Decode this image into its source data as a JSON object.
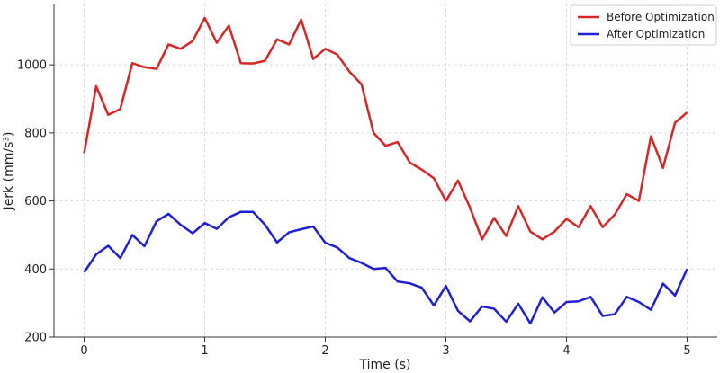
{
  "chart_data": {
    "type": "line",
    "title": "",
    "xlabel": "Time (s)",
    "ylabel": "Jerk (mm/s³)",
    "xlim": [
      -0.25,
      5.25
    ],
    "ylim": [
      200,
      1180
    ],
    "x_ticks": [
      0,
      1,
      2,
      3,
      4,
      5
    ],
    "y_ticks": [
      200,
      400,
      600,
      800,
      1000
    ],
    "grid": true,
    "legend_position": "top-right",
    "x": [
      0,
      0.1,
      0.2,
      0.3,
      0.4,
      0.5,
      0.6,
      0.7,
      0.8,
      0.9,
      1.0,
      1.1,
      1.2,
      1.3,
      1.4,
      1.5,
      1.6,
      1.7,
      1.8,
      1.9,
      2.0,
      2.1,
      2.2,
      2.3,
      2.4,
      2.5,
      2.6,
      2.7,
      2.8,
      2.9,
      3.0,
      3.1,
      3.2,
      3.3,
      3.4,
      3.5,
      3.6,
      3.7,
      3.8,
      3.9,
      4.0,
      4.1,
      4.2,
      4.3,
      4.4,
      4.5,
      4.6,
      4.7,
      4.8,
      4.9,
      5.0
    ],
    "series": [
      {
        "name": "Before Optimization",
        "color": "#d62728",
        "values": [
          740,
          937,
          853,
          870,
          1005,
          993,
          988,
          1060,
          1047,
          1070,
          1138,
          1065,
          1115,
          1005,
          1004,
          1012,
          1075,
          1060,
          1133,
          1017,
          1047,
          1030,
          980,
          943,
          800,
          762,
          773,
          713,
          692,
          667,
          600,
          660,
          580,
          487,
          550,
          497,
          585,
          510,
          487,
          510,
          547,
          523,
          585,
          523,
          560,
          620,
          600,
          790,
          697,
          830,
          860
        ]
      },
      {
        "name": "After Optimization",
        "color": "#1f1fd6",
        "values": [
          390,
          443,
          468,
          432,
          500,
          467,
          540,
          562,
          530,
          505,
          535,
          518,
          552,
          568,
          568,
          530,
          478,
          508,
          517,
          525,
          477,
          463,
          432,
          418,
          400,
          403,
          363,
          358,
          345,
          293,
          350,
          277,
          246,
          290,
          283,
          245,
          298,
          240,
          317,
          272,
          303,
          305,
          318,
          262,
          267,
          318,
          303,
          280,
          357,
          322,
          400
        ]
      }
    ]
  }
}
